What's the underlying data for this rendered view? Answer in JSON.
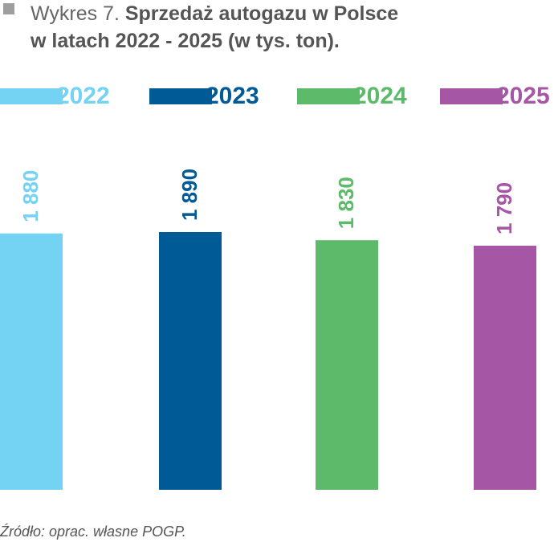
{
  "title": {
    "prefix": "Wykres 7.",
    "line1": "Sprzedaż autogazu w Polsce",
    "line2": "w latach 2022 - 2025 (w tys. ton)."
  },
  "source": "Źródło: oprac. własne POGP.",
  "chart_data": {
    "type": "bar",
    "title": "Wykres 7. Sprzedaż autogazu w Polsce w latach 2022 - 2025 (w tys. ton).",
    "categories": [
      "2022",
      "2023",
      "2024",
      "2025"
    ],
    "values": [
      1880,
      1890,
      1830,
      1790
    ],
    "value_labels": [
      "1 880",
      "1 890",
      "1 830",
      "1 790"
    ],
    "colors": [
      "#74d3f3",
      "#005a96",
      "#5cba6a",
      "#a556a4"
    ],
    "ylim": [
      0,
      1890
    ],
    "xlabel": "",
    "ylabel": "",
    "grid": false,
    "legend_position": "top",
    "axes_visible": false
  }
}
